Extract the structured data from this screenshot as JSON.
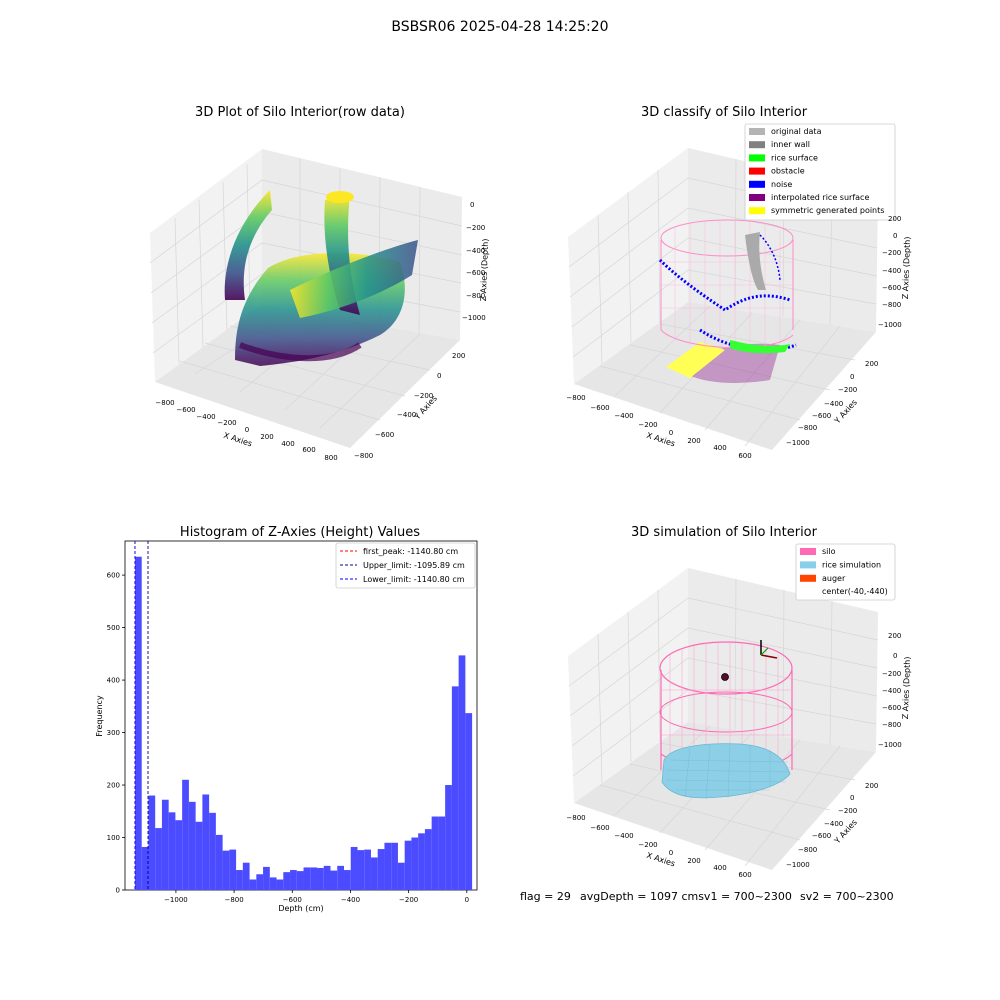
{
  "suptitle": "BSBSR06 2025-04-28 14:25:20",
  "footer": {
    "flag": "flag = 29",
    "avg": "avgDepth = 1097 cmsv1 = 700~2300",
    "sv2": "sv2 = 700~2300"
  },
  "colors": {
    "hist_bar": "#4b4bff",
    "first_peak": "#ff0000",
    "upper_limit": "#00008b",
    "lower_limit": "#0000ff",
    "silo": "#ff69b4",
    "rice_sim": "#87ceeb",
    "auger": "#ff4500",
    "pane": "#f2f2f2",
    "grid": "#d9d9d9"
  },
  "panels": {
    "raw": {
      "title": "3D Plot of Silo Interior(row data)",
      "xlabel": "X Axies",
      "ylabel": "Y Axies",
      "zlabel": "Z Axies (Depth)",
      "xticks": [
        "−800",
        "−600",
        "−400",
        "−200",
        "0",
        "200",
        "400",
        "600",
        "800"
      ],
      "yticks": [
        "200",
        "0",
        "−200",
        "−400",
        "−600",
        "−800"
      ],
      "zticks": [
        "0",
        "−200",
        "−400",
        "−600",
        "−800",
        "−1000"
      ]
    },
    "classify": {
      "title": "3D classify of Silo Interior",
      "xlabel": "X Axies",
      "ylabel": "Y Axies",
      "zlabel": "Z Axies (Depth)",
      "xticks": [
        "−800",
        "−600",
        "−400",
        "−200",
        "0",
        "200",
        "400",
        "600"
      ],
      "yticks": [
        "200",
        "0",
        "−200",
        "−400",
        "−600",
        "−800",
        "−1000"
      ],
      "zticks": [
        "200",
        "0",
        "−200",
        "−400",
        "−600",
        "−800",
        "−1000"
      ],
      "legend": [
        {
          "label": "original data",
          "color": "#b4b4b4"
        },
        {
          "label": "inner wall",
          "color": "#808080"
        },
        {
          "label": "rice surface",
          "color": "#00ff00"
        },
        {
          "label": "obstacle",
          "color": "#ff0000"
        },
        {
          "label": "noise",
          "color": "#0000ff"
        },
        {
          "label": "interpolated rice surface",
          "color": "#800080"
        },
        {
          "label": "symmetric generated points",
          "color": "#ffff00"
        }
      ]
    },
    "simulation": {
      "title": "3D simulation of Silo Interior",
      "xlabel": "X Axies",
      "ylabel": "Y Axies",
      "zlabel": "Z Axies (Depth)",
      "xticks": [
        "−800",
        "−600",
        "−400",
        "−200",
        "0",
        "200",
        "400",
        "600"
      ],
      "yticks": [
        "200",
        "0",
        "−200",
        "−400",
        "−600",
        "−800",
        "−1000"
      ],
      "zticks": [
        "200",
        "0",
        "−200",
        "−400",
        "−600",
        "−800",
        "−1000"
      ],
      "legend": [
        {
          "label": "silo",
          "color": "#ff69b4"
        },
        {
          "label": "rice simulation",
          "color": "#87ceeb"
        },
        {
          "label": "auger",
          "color": "#ff4500"
        },
        {
          "label": "center(-40,-440)",
          "color": ""
        }
      ]
    }
  },
  "chart_data": {
    "type": "bar",
    "title": "Histogram of Z-Axies (Height) Values",
    "xlabel": "Depth (cm)",
    "ylabel": "Frequency",
    "xlim": [
      -1175,
      35
    ],
    "ylim": [
      0,
      665
    ],
    "xticks": [
      -1000,
      -800,
      -600,
      -400,
      -200,
      0
    ],
    "xtick_labels": [
      "−1000",
      "−800",
      "−600",
      "−400",
      "−200",
      "0"
    ],
    "yticks": [
      0,
      100,
      200,
      300,
      400,
      500,
      600
    ],
    "bin_start": -1140.8,
    "bin_width": 23.18,
    "values": [
      635,
      82,
      180,
      118,
      172,
      148,
      133,
      210,
      168,
      130,
      182,
      147,
      105,
      75,
      77,
      38,
      52,
      20,
      30,
      44,
      24,
      20,
      34,
      38,
      36,
      43,
      43,
      42,
      46,
      37,
      46,
      38,
      82,
      76,
      77,
      62,
      78,
      90,
      90,
      52,
      94,
      100,
      108,
      116,
      140,
      140,
      200,
      388,
      447,
      337
    ],
    "lines": [
      {
        "name": "first_peak: -1140.80 cm",
        "x": -1140.8
      },
      {
        "name": "Upper_limit: -1095.89 cm",
        "x": -1095.89
      },
      {
        "name": "Lower_limit: -1140.80 cm",
        "x": -1140.8
      }
    ],
    "legend_position": "upper right"
  }
}
